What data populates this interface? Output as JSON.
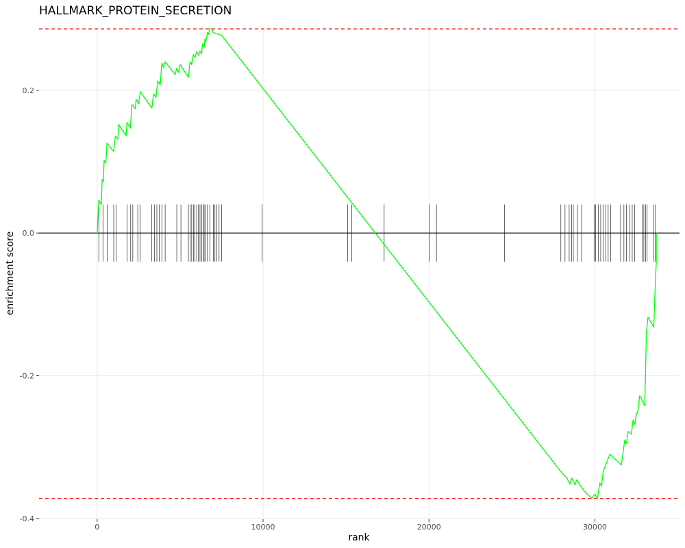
{
  "chart_data": {
    "type": "line",
    "title": "HALLMARK_PROTEIN_SECRETION",
    "xlabel": "rank",
    "ylabel": "enrichment score",
    "xlim": [
      -3500,
      35100
    ],
    "ylim": [
      -0.401,
      0.29
    ],
    "x_ticks": [
      0,
      10000,
      20000,
      30000
    ],
    "x_tick_labels": [
      "0",
      "10000",
      "20000",
      "30000"
    ],
    "y_ticks": [
      -0.4,
      -0.2,
      0.0,
      0.2
    ],
    "y_tick_labels": [
      "-0.4",
      "-0.2",
      "0.0",
      "0.2"
    ],
    "grid": true,
    "colors": {
      "curve": "#00ff00",
      "reference": "#ff0000",
      "ticks": "#000000",
      "zero": "#000000",
      "grid": "#ebebeb"
    },
    "reference_lines": [
      0.286,
      -0.372
    ],
    "series": [
      {
        "values": [
          [
            0,
            0.0
          ],
          [
            100,
            0.046
          ],
          [
            250,
            0.04
          ],
          [
            300,
            0.075
          ],
          [
            380,
            0.072
          ],
          [
            420,
            0.102
          ],
          [
            520,
            0.098
          ],
          [
            600,
            0.126
          ],
          [
            1000,
            0.114
          ],
          [
            1100,
            0.136
          ],
          [
            1250,
            0.131
          ],
          [
            1300,
            0.152
          ],
          [
            1750,
            0.136
          ],
          [
            1800,
            0.155
          ],
          [
            2000,
            0.147
          ],
          [
            2100,
            0.18
          ],
          [
            2300,
            0.174
          ],
          [
            2350,
            0.187
          ],
          [
            2500,
            0.181
          ],
          [
            2600,
            0.198
          ],
          [
            3300,
            0.175
          ],
          [
            3400,
            0.195
          ],
          [
            3550,
            0.19
          ],
          [
            3650,
            0.213
          ],
          [
            3800,
            0.207
          ],
          [
            3900,
            0.238
          ],
          [
            4000,
            0.232
          ],
          [
            4100,
            0.24
          ],
          [
            4700,
            0.222
          ],
          [
            4800,
            0.231
          ],
          [
            4900,
            0.225
          ],
          [
            5000,
            0.236
          ],
          [
            5500,
            0.218
          ],
          [
            5600,
            0.24
          ],
          [
            5700,
            0.236
          ],
          [
            5800,
            0.25
          ],
          [
            5900,
            0.246
          ],
          [
            6000,
            0.254
          ],
          [
            6100,
            0.249
          ],
          [
            6200,
            0.255
          ],
          [
            6300,
            0.251
          ],
          [
            6350,
            0.265
          ],
          [
            6450,
            0.26
          ],
          [
            6500,
            0.272
          ],
          [
            6550,
            0.268
          ],
          [
            6650,
            0.281
          ],
          [
            6700,
            0.278
          ],
          [
            6800,
            0.286
          ],
          [
            6900,
            0.286
          ],
          [
            7000,
            0.281
          ],
          [
            7200,
            0.279
          ],
          [
            7500,
            0.277
          ],
          [
            28000,
            -0.336
          ],
          [
            28300,
            -0.343
          ],
          [
            28500,
            -0.352
          ],
          [
            28600,
            -0.343
          ],
          [
            28800,
            -0.353
          ],
          [
            28900,
            -0.346
          ],
          [
            29300,
            -0.36
          ],
          [
            29800,
            -0.372
          ],
          [
            30000,
            -0.366
          ],
          [
            30150,
            -0.372
          ],
          [
            30300,
            -0.35
          ],
          [
            30400,
            -0.355
          ],
          [
            30500,
            -0.334
          ],
          [
            30700,
            -0.322
          ],
          [
            30900,
            -0.31
          ],
          [
            31600,
            -0.325
          ],
          [
            31800,
            -0.29
          ],
          [
            31900,
            -0.295
          ],
          [
            32000,
            -0.278
          ],
          [
            32200,
            -0.282
          ],
          [
            32300,
            -0.262
          ],
          [
            32400,
            -0.268
          ],
          [
            32500,
            -0.254
          ],
          [
            32600,
            -0.248
          ],
          [
            32700,
            -0.228
          ],
          [
            33000,
            -0.242
          ],
          [
            33050,
            -0.2
          ],
          [
            33100,
            -0.14
          ],
          [
            33200,
            -0.118
          ],
          [
            33550,
            -0.132
          ],
          [
            33600,
            -0.095
          ],
          [
            33700,
            -0.04
          ],
          [
            33700,
            0.0
          ]
        ]
      }
    ],
    "hit_positions": [
      100,
      350,
      600,
      1000,
      1150,
      1800,
      2000,
      2150,
      2450,
      2600,
      3300,
      3450,
      3600,
      3750,
      3900,
      4100,
      4800,
      5050,
      5500,
      5600,
      5700,
      5800,
      5900,
      6000,
      6100,
      6200,
      6300,
      6400,
      6450,
      6550,
      6650,
      6800,
      7000,
      7100,
      7200,
      7350,
      7500,
      9950,
      15100,
      15350,
      17300,
      20050,
      20450,
      24550,
      27950,
      28200,
      28450,
      28600,
      28700,
      28950,
      29200,
      29950,
      30050,
      30200,
      30350,
      30500,
      30650,
      30800,
      30950,
      31550,
      31750,
      31900,
      32100,
      32250,
      32400,
      32850,
      32950,
      33050,
      33150,
      33550,
      33650
    ]
  }
}
